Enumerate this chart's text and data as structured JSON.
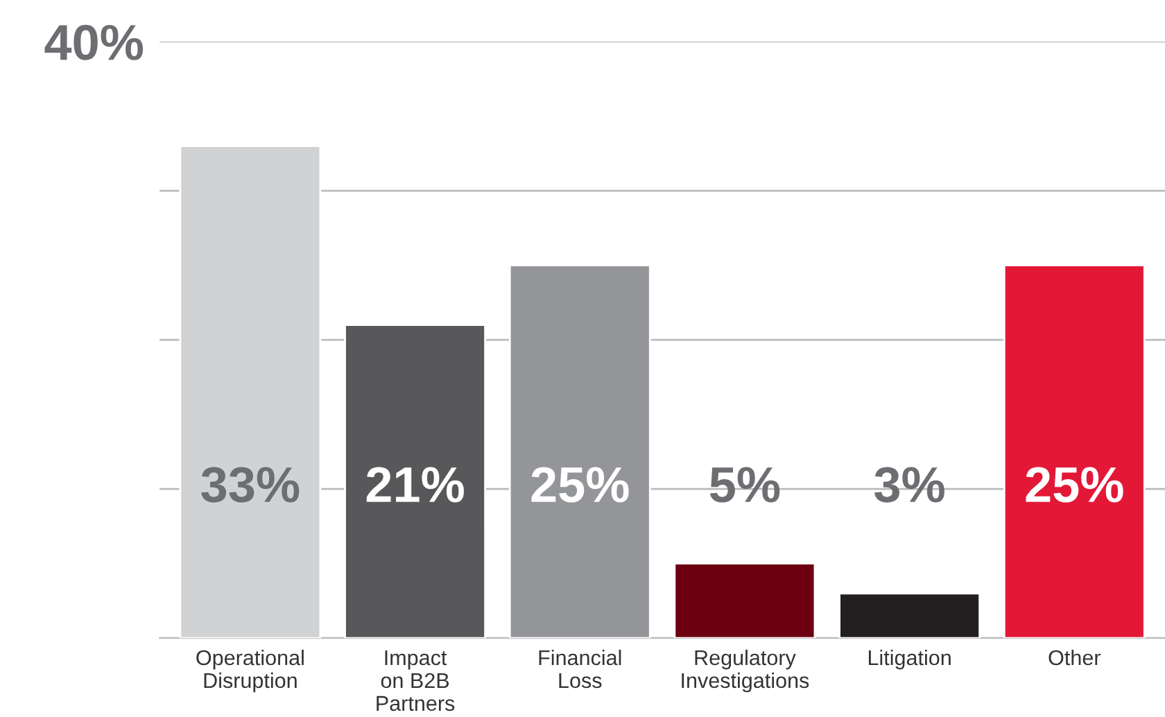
{
  "chart_data": {
    "type": "bar",
    "categories": [
      "Operational\nDisruption",
      "Impact\non B2B\nPartners",
      "Financial\nLoss",
      "Regulatory\nInvestigations",
      "Litigation",
      "Other"
    ],
    "values": [
      33,
      21,
      25,
      5,
      3,
      25
    ],
    "colors": [
      "#d1d2d4",
      "#58585a",
      "#939598",
      "#6d0010",
      "#231f20",
      "#e31837"
    ],
    "value_labels": [
      "33%",
      "21%",
      "25%",
      "5%",
      "3%",
      "25%"
    ],
    "ylim": [
      0,
      40
    ],
    "yticks": [
      {
        "value": 0,
        "label": null
      },
      {
        "value": 10,
        "label": null
      },
      {
        "value": 20,
        "label": null
      },
      {
        "value": 30,
        "label": null
      },
      {
        "value": 40,
        "label": "40%"
      }
    ],
    "grid": "y",
    "legend": false
  }
}
